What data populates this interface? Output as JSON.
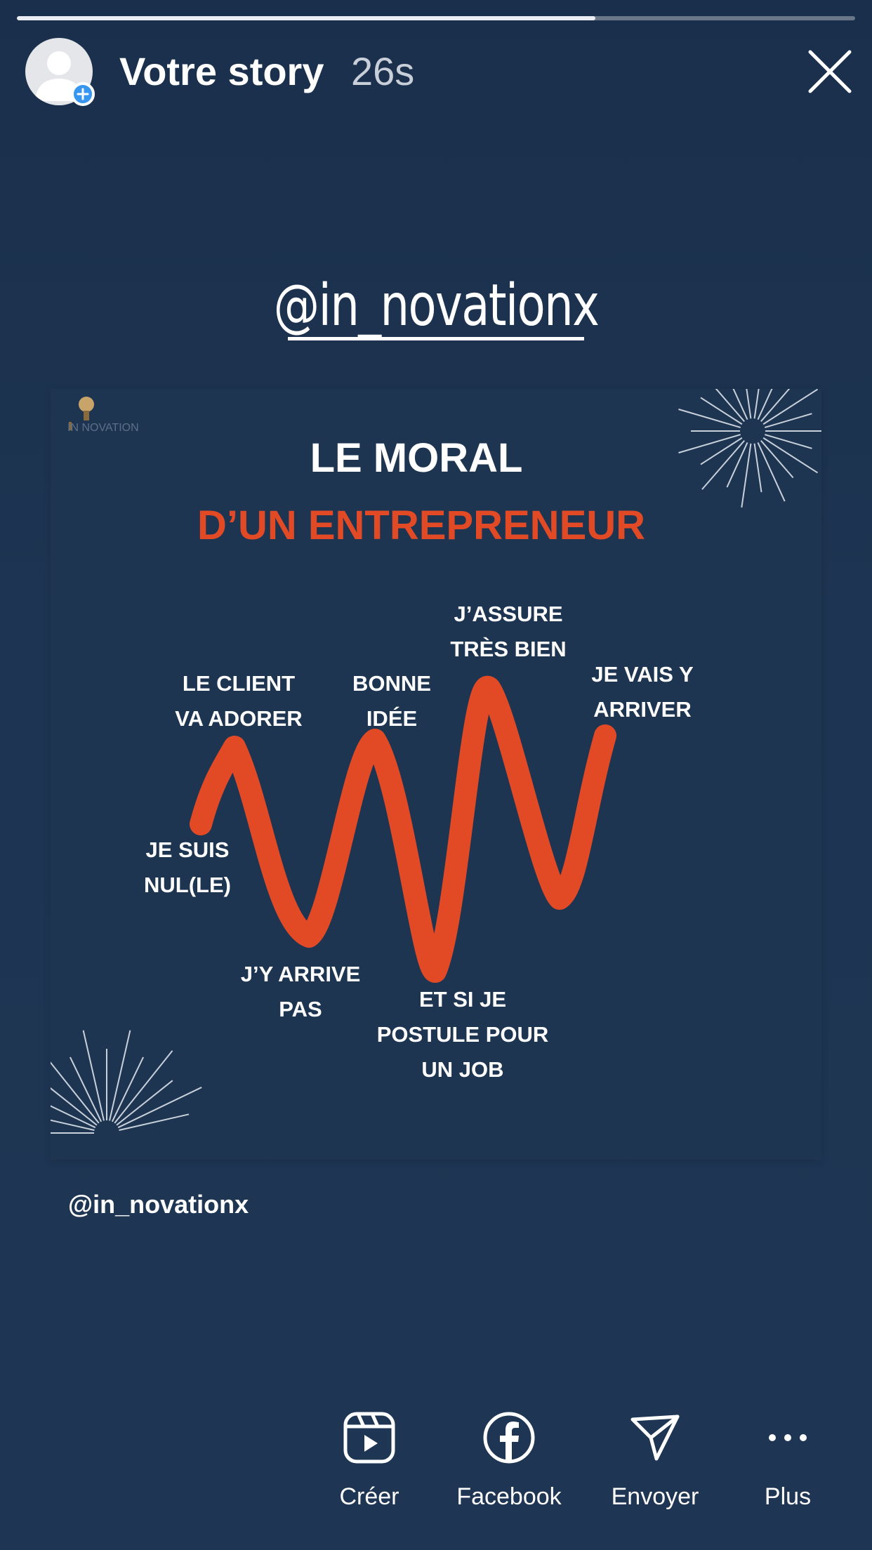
{
  "story": {
    "owner_label": "Votre story",
    "elapsed": "26s",
    "progress_fraction": 0.69
  },
  "sticker": {
    "mention": "@in_novationx"
  },
  "post": {
    "logo_text": "IN NOVATION",
    "title_line1": "LE MORAL",
    "title_line2": "D’UN ENTREPRENEUR",
    "labels": {
      "je_suis_nul_1": "JE SUIS",
      "je_suis_nul_2": "NUL(LE)",
      "client_1": "LE CLIENT",
      "client_2": "VA ADORER",
      "arrive_pas_1": "J’Y ARRIVE",
      "arrive_pas_2": "PAS",
      "bonne_idee_1": "BONNE",
      "bonne_idee_2": "IDÉE",
      "job_1": "ET SI JE",
      "job_2": "POSTULE POUR",
      "job_3": "UN JOB",
      "assure_1": "J’ASSURE",
      "assure_2": "TRÈS BIEN",
      "vais_1": "JE VAIS Y",
      "vais_2": "ARRIVER"
    },
    "accent_color": "#e24a26",
    "handle": "@in_novationx"
  },
  "actions": {
    "create_label": "Créer",
    "facebook_label": "Facebook",
    "send_label": "Envoyer",
    "more_label": "Plus"
  },
  "icons": {
    "avatar": "person-silhouette-icon",
    "add": "plus-icon",
    "close": "close-icon",
    "create": "reels-icon",
    "facebook": "facebook-icon",
    "send": "paper-plane-icon",
    "more": "ellipsis-icon"
  }
}
